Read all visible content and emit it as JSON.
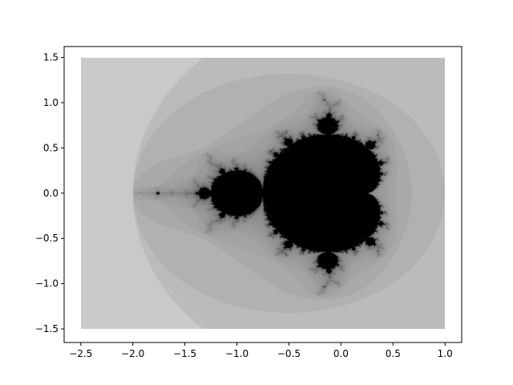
{
  "chart_data": {
    "type": "heatmap",
    "title": "",
    "xlabel": "",
    "ylabel": "",
    "description_source": "Mandelbrot set escape-time plot, grayscale",
    "x_range": [
      -2.5,
      1.0
    ],
    "y_range": [
      -1.5,
      1.5
    ],
    "xlim": [
      -2.66,
      1.16
    ],
    "ylim": [
      -1.65,
      1.62
    ],
    "x_ticks": [
      -2.5,
      -2.0,
      -1.5,
      -1.0,
      -0.5,
      0.0,
      0.5,
      1.0
    ],
    "x_tick_labels": [
      "−2.5",
      "−2.0",
      "−1.5",
      "−1.0",
      "−0.5",
      "0.0",
      "0.5",
      "1.0"
    ],
    "y_ticks": [
      -1.5,
      -1.0,
      -0.5,
      0.0,
      0.5,
      1.0,
      1.5
    ],
    "y_tick_labels": [
      "−1.5",
      "−1.0",
      "−0.5",
      "0.0",
      "0.5",
      "1.0",
      "1.5"
    ],
    "max_iter": 100,
    "colormap": "gray_r",
    "grid": false,
    "legend": "none",
    "colors": {
      "inside_set": "#000000",
      "outer_band": "#dcdcdc",
      "inner_band": "#c0c0c0"
    }
  }
}
